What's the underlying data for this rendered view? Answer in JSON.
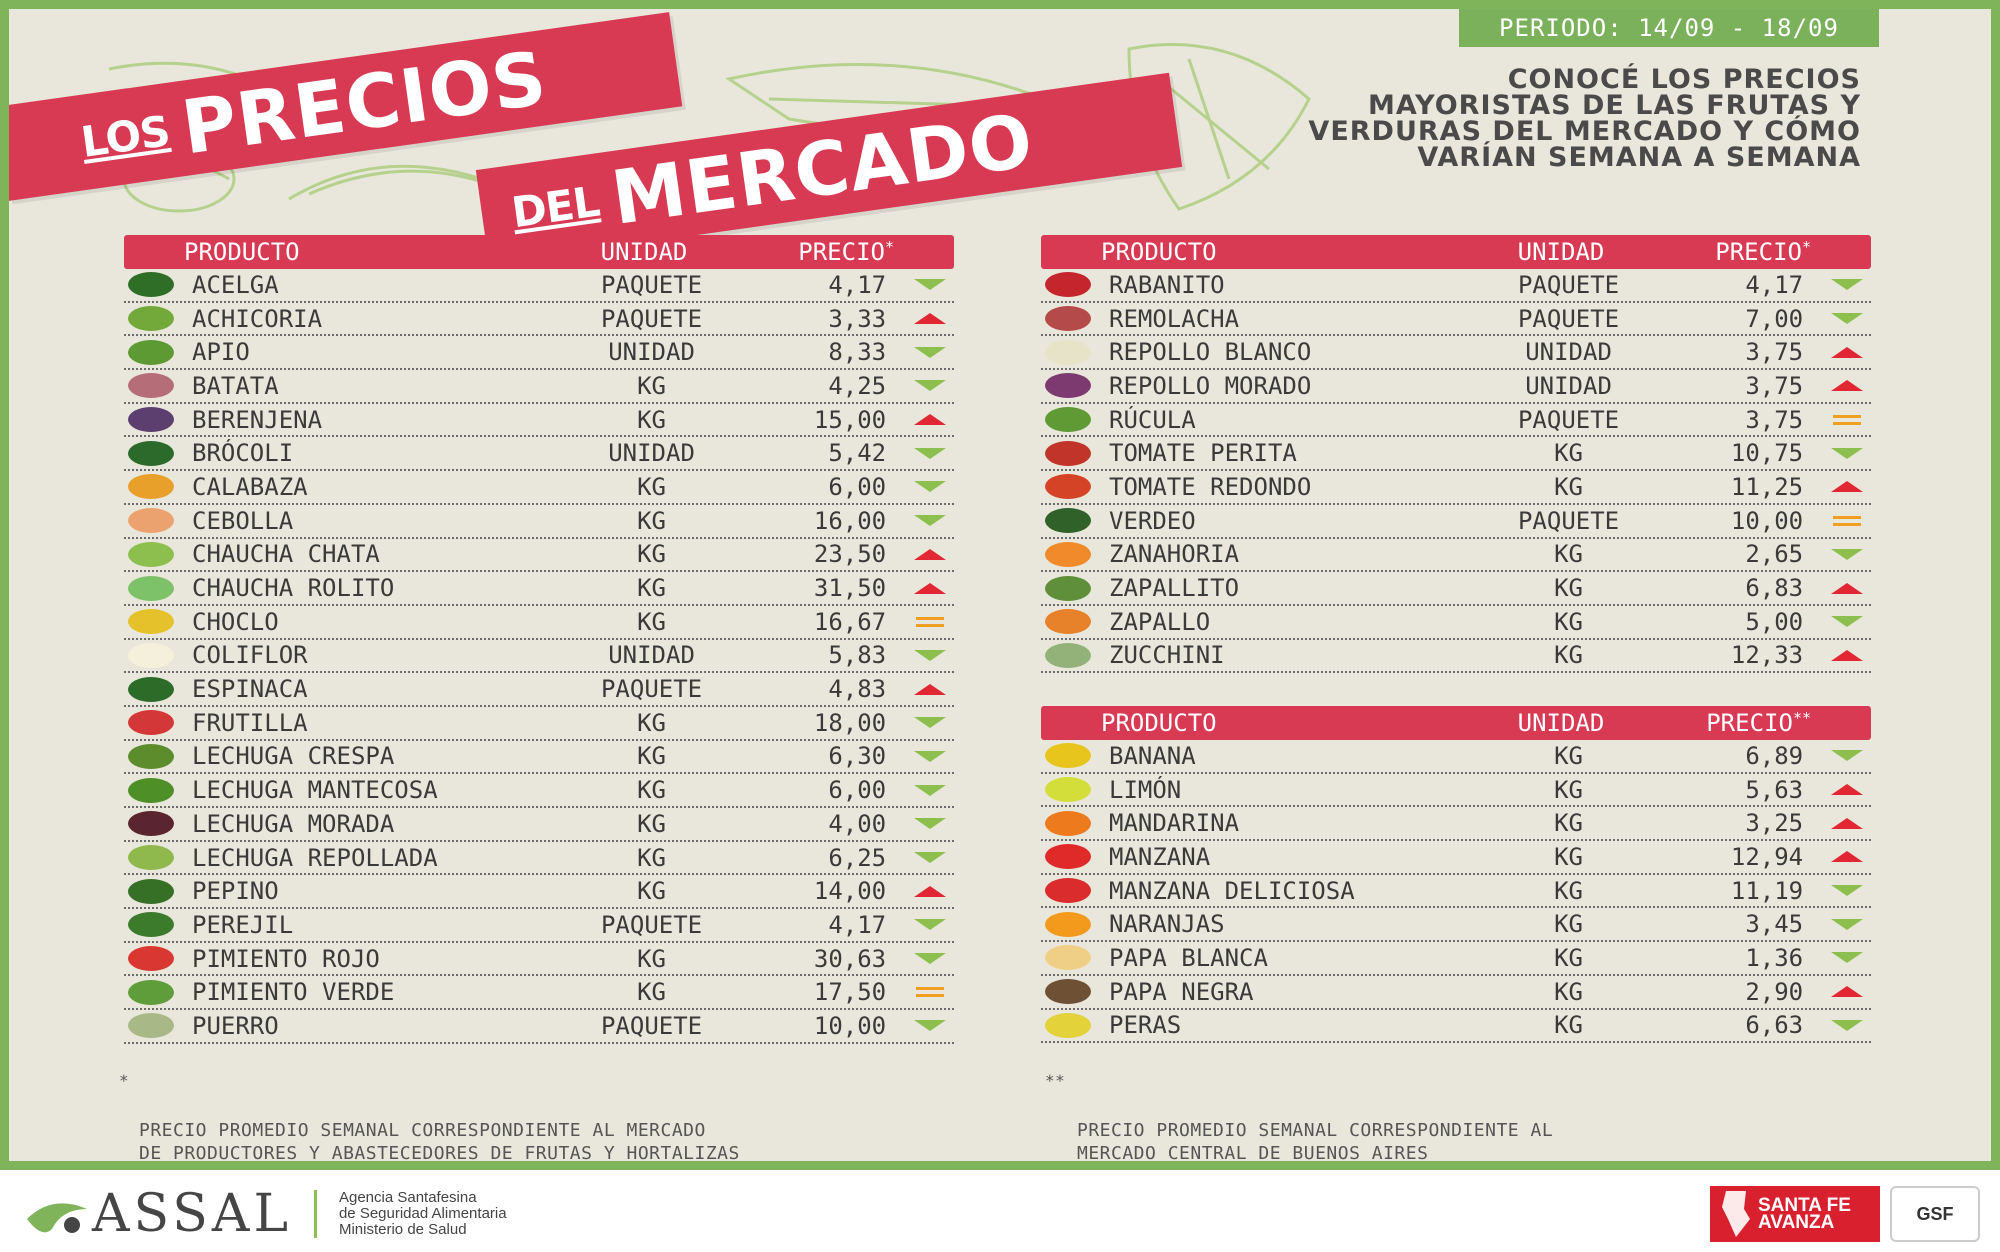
{
  "header": {
    "period": "PERIODO: 14/09 - 18/09",
    "title_small_1": "LOS",
    "title_big_1": "PRECIOS",
    "title_small_2": "DEL",
    "title_big_2": "MERCADO",
    "intro": "CONOCÉ LOS PRECIOS MAYORISTAS DE LAS FRUTAS Y VERDURAS DEL MERCADO Y CÓMO VARÍAN SEMANA A SEMANA"
  },
  "columns": {
    "product": "PRODUCTO",
    "unit": "UNIDAD",
    "price": "PRECIO",
    "mark_single": "*",
    "mark_double": "**"
  },
  "table_left": [
    {
      "name": "ACELGA",
      "unit": "PAQUETE",
      "price": "4,17",
      "trend": "down",
      "color": "#2f6e26"
    },
    {
      "name": "ACHICORIA",
      "unit": "PAQUETE",
      "price": "3,33",
      "trend": "up",
      "color": "#73a93a"
    },
    {
      "name": "APIO",
      "unit": "UNIDAD",
      "price": "8,33",
      "trend": "down",
      "color": "#5d9a33"
    },
    {
      "name": "BATATA",
      "unit": "KG",
      "price": "4,25",
      "trend": "down",
      "color": "#b56d77"
    },
    {
      "name": "BERENJENA",
      "unit": "KG",
      "price": "15,00",
      "trend": "up",
      "color": "#5c3e6f"
    },
    {
      "name": "BRÓCOLI",
      "unit": "UNIDAD",
      "price": "5,42",
      "trend": "down",
      "color": "#2c6a2c"
    },
    {
      "name": "CALABAZA",
      "unit": "KG",
      "price": "6,00",
      "trend": "down",
      "color": "#e8a02a"
    },
    {
      "name": "CEBOLLA",
      "unit": "KG",
      "price": "16,00",
      "trend": "down",
      "color": "#eba26e"
    },
    {
      "name": "CHAUCHA CHATA",
      "unit": "KG",
      "price": "23,50",
      "trend": "up",
      "color": "#8dbf4e"
    },
    {
      "name": "CHAUCHA ROLITO",
      "unit": "KG",
      "price": "31,50",
      "trend": "up",
      "color": "#7dc268"
    },
    {
      "name": "CHOCLO",
      "unit": "KG",
      "price": "16,67",
      "trend": "eq",
      "color": "#e5c22b"
    },
    {
      "name": "COLIFLOR",
      "unit": "UNIDAD",
      "price": "5,83",
      "trend": "down",
      "color": "#f4f0dc"
    },
    {
      "name": "ESPINACA",
      "unit": "PAQUETE",
      "price": "4,83",
      "trend": "up",
      "color": "#2d6b28"
    },
    {
      "name": "FRUTILLA",
      "unit": "KG",
      "price": "18,00",
      "trend": "down",
      "color": "#d43737"
    },
    {
      "name": "LECHUGA CRESPA",
      "unit": "KG",
      "price": "6,30",
      "trend": "down",
      "color": "#5d8c2c"
    },
    {
      "name": "LECHUGA MANTECOSA",
      "unit": "KG",
      "price": "6,00",
      "trend": "down",
      "color": "#4f8f28"
    },
    {
      "name": "LECHUGA MORADA",
      "unit": "KG",
      "price": "4,00",
      "trend": "down",
      "color": "#5a2530"
    },
    {
      "name": "LECHUGA REPOLLADA",
      "unit": "KG",
      "price": "6,25",
      "trend": "down",
      "color": "#8fb84d"
    },
    {
      "name": "PEPINO",
      "unit": "KG",
      "price": "14,00",
      "trend": "up",
      "color": "#366f26"
    },
    {
      "name": "PEREJIL",
      "unit": "PAQUETE",
      "price": "4,17",
      "trend": "down",
      "color": "#3c7a2c"
    },
    {
      "name": "PIMIENTO ROJO",
      "unit": "KG",
      "price": "30,63",
      "trend": "down",
      "color": "#d93832"
    },
    {
      "name": "PIMIENTO VERDE",
      "unit": "KG",
      "price": "17,50",
      "trend": "eq",
      "color": "#5f9c3a"
    },
    {
      "name": "PUERRO",
      "unit": "PAQUETE",
      "price": "10,00",
      "trend": "down",
      "color": "#a9b887"
    }
  ],
  "table_right": [
    {
      "name": "RABANITO",
      "unit": "PAQUETE",
      "price": "4,17",
      "trend": "down",
      "color": "#c5262e"
    },
    {
      "name": "REMOLACHA",
      "unit": "PAQUETE",
      "price": "7,00",
      "trend": "down",
      "color": "#b54a4a"
    },
    {
      "name": "REPOLLO BLANCO",
      "unit": "UNIDAD",
      "price": "3,75",
      "trend": "up",
      "color": "#e6e3c8"
    },
    {
      "name": "REPOLLO MORADO",
      "unit": "UNIDAD",
      "price": "3,75",
      "trend": "up",
      "color": "#7d3a70"
    },
    {
      "name": "RÚCULA",
      "unit": "PAQUETE",
      "price": "3,75",
      "trend": "eq",
      "color": "#5f9a35"
    },
    {
      "name": "TOMATE PERITA",
      "unit": "KG",
      "price": "10,75",
      "trend": "down",
      "color": "#c1342a"
    },
    {
      "name": "TOMATE REDONDO",
      "unit": "KG",
      "price": "11,25",
      "trend": "up",
      "color": "#d44326"
    },
    {
      "name": "VERDEO",
      "unit": "PAQUETE",
      "price": "10,00",
      "trend": "eq",
      "color": "#2f6128"
    },
    {
      "name": "ZANAHORIA",
      "unit": "KG",
      "price": "2,65",
      "trend": "down",
      "color": "#f08a2a"
    },
    {
      "name": "ZAPALLITO",
      "unit": "KG",
      "price": "6,83",
      "trend": "up",
      "color": "#5f8f3a"
    },
    {
      "name": "ZAPALLO",
      "unit": "KG",
      "price": "5,00",
      "trend": "down",
      "color": "#e8822a"
    },
    {
      "name": "ZUCCHINI",
      "unit": "KG",
      "price": "12,33",
      "trend": "up",
      "color": "#93b27a"
    }
  ],
  "table_fruits": [
    {
      "name": "BANANA",
      "unit": "KG",
      "price": "6,89",
      "trend": "down",
      "color": "#e7c51c"
    },
    {
      "name": "LIMÓN",
      "unit": "KG",
      "price": "5,63",
      "trend": "up",
      "color": "#d3de3a"
    },
    {
      "name": "MANDARINA",
      "unit": "KG",
      "price": "3,25",
      "trend": "up",
      "color": "#ee7a1e"
    },
    {
      "name": "MANZANA",
      "unit": "KG",
      "price": "12,94",
      "trend": "up",
      "color": "#e02a2a"
    },
    {
      "name": "MANZANA DELICIOSA",
      "unit": "KG",
      "price": "11,19",
      "trend": "down",
      "color": "#da2b2d"
    },
    {
      "name": "NARANJAS",
      "unit": "KG",
      "price": "3,45",
      "trend": "down",
      "color": "#f39a1c"
    },
    {
      "name": "PAPA BLANCA",
      "unit": "KG",
      "price": "1,36",
      "trend": "down",
      "color": "#efcf86"
    },
    {
      "name": "PAPA NEGRA",
      "unit": "KG",
      "price": "2,90",
      "trend": "up",
      "color": "#6e5134"
    },
    {
      "name": "PERAS",
      "unit": "KG",
      "price": "6,63",
      "trend": "down",
      "color": "#e3d23a"
    }
  ],
  "notes": {
    "left": "PRECIO PROMEDIO SEMANAL CORRESPONDIENTE AL MERCADO\nDE PRODUCTORES Y ABASTECEDORES DE FRUTAS Y HORTALIZAS\nDE SANTA FE S.A. - FUENTE: INTA AER MONTE VERA",
    "right": "PRECIO PROMEDIO SEMANAL CORRESPONDIENTE AL\nMERCADO CENTRAL DE BUENOS AIRES\nFUENTE: WWW.MERCADOCENTRAL.GOB.AR"
  },
  "footer": {
    "assal_logo": "ASSAL",
    "assal_line1": "Agencia Santafesina",
    "assal_line2": "de Seguridad Alimentaria",
    "assal_line3": "Ministerio de Salud",
    "santafe_line1": "SANTA FE",
    "santafe_line2": "AVANZA",
    "gsf": "GSF"
  },
  "colors": {
    "accent_red": "#d93a53",
    "border_green": "#7fb45a",
    "background": "#e9e7dc",
    "trend_up": "#e02733",
    "trend_down": "#8dbf4e",
    "trend_equal": "#f0a020"
  }
}
